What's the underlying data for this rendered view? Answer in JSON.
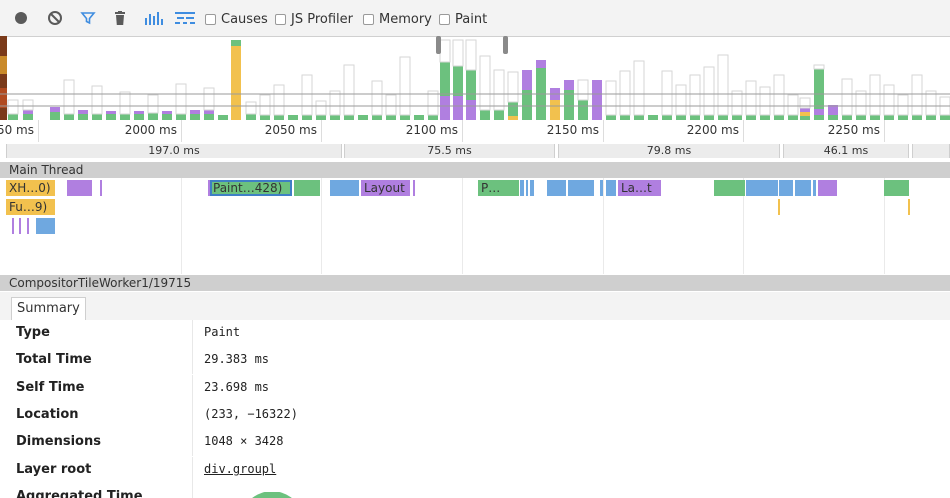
{
  "toolbar": {
    "icons": [
      "record-icon",
      "clear-icon",
      "filter-icon",
      "trash-icon",
      "bar-chart-icon",
      "flame-chart-icon"
    ],
    "checkboxes": [
      {
        "label": "Causes",
        "checked": false
      },
      {
        "label": "JS Profiler",
        "checked": false
      },
      {
        "label": "Memory",
        "checked": false
      },
      {
        "label": "Paint",
        "checked": false
      }
    ]
  },
  "ruler": {
    "labels": [
      "50 ms",
      "2000 ms",
      "2050 ms",
      "2100 ms",
      "2150 ms",
      "2200 ms",
      "2250 ms"
    ]
  },
  "frames": {
    "durations": [
      "197.0 ms",
      "75.5 ms",
      "79.8 ms",
      "46.1 ms"
    ]
  },
  "main_thread": {
    "title": "Main Thread",
    "blocks": [
      "XH…0)",
      "Fu…9)",
      "Paint…428)",
      "Layout",
      "P…",
      "La…t"
    ]
  },
  "compositor_thread": {
    "title": "CompositorTileWorker1/19715"
  },
  "details": {
    "tab_label": "Summary",
    "rows": [
      {
        "label": "Type",
        "value": "Paint"
      },
      {
        "label": "Total Time",
        "value": "29.383 ms"
      },
      {
        "label": "Self Time",
        "value": "23.698 ms"
      },
      {
        "label": "Location",
        "value": "(233, −16322)"
      },
      {
        "label": "Dimensions",
        "value": "1048 × 3428"
      },
      {
        "label": "Layer root",
        "value": "div.groupl"
      },
      {
        "label": "Aggregated Time",
        "value": ""
      }
    ]
  },
  "colors": {
    "scripting": "#f2c14e",
    "rendering": "#b07fe0",
    "painting": "#6cc17e",
    "loading": "#6fa8e0",
    "other": "#d8d8d8",
    "selection": "#3f7fc5"
  }
}
